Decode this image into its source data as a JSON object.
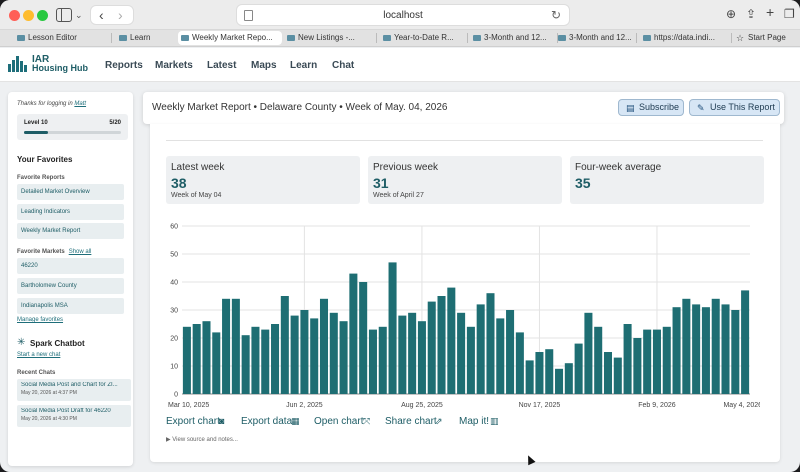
{
  "browser": {
    "url": "localhost",
    "tabs": [
      {
        "label": "Lesson Editor",
        "active": false
      },
      {
        "label": "Learn",
        "active": false
      },
      {
        "label": "Weekly Market Repo...",
        "active": true
      },
      {
        "label": "New Listings -...",
        "active": false
      },
      {
        "label": "Year-to-Date R...",
        "active": false
      },
      {
        "label": "3-Month and 12...",
        "active": false
      },
      {
        "label": "3-Month and 12...",
        "active": false
      },
      {
        "label": "https://data.indi...",
        "active": false
      },
      {
        "label": "Start Page",
        "active": false
      }
    ]
  },
  "app": {
    "logo_line1": "IAR",
    "logo_line2": "Housing Hub",
    "nav": [
      "Reports",
      "Markets",
      "Latest",
      "Maps",
      "Learn",
      "Chat"
    ]
  },
  "sidebar": {
    "thanks": "Thanks for logging in",
    "user": "Matt",
    "level_label": "Level 10",
    "level_progress": "5/20",
    "level_fraction": 0.25,
    "favorites_title": "Your Favorites",
    "favorite_reports_title": "Favorite Reports",
    "favorite_reports": [
      "Detailed Market Overview",
      "Leading Indicators",
      "Weekly Market Report"
    ],
    "favorite_markets_title": "Favorite Markets",
    "show_all": "Show all",
    "favorite_markets": [
      "46220",
      "Bartholomew County",
      "Indianapolis MSA"
    ],
    "manage_favorites": "Manage favorites",
    "chatbot_title": "Spark Chatbot",
    "new_chat": "Start a new chat",
    "recent_chats_title": "Recent Chats",
    "recent_chats": [
      {
        "title": "Social Media Post and Chart for ZI...",
        "date": "May 20, 2026 at 4:37 PM"
      },
      {
        "title": "Social Media Post Draft for 46220",
        "date": "May 20, 2026 at 4:30 PM"
      }
    ]
  },
  "report": {
    "title": "Weekly Market Report • Delaware County • Week of May. 04, 2026",
    "subscribe_label": "Subscribe",
    "use_label": "Use This Report",
    "stats": [
      {
        "label": "Latest week",
        "value": "38",
        "sub": "Week of May 04"
      },
      {
        "label": "Previous week",
        "value": "31",
        "sub": "Week of April 27"
      },
      {
        "label": "Four-week average",
        "value": "35",
        "sub": ""
      }
    ],
    "actions": [
      "Export chart",
      "Export data",
      "Open chart",
      "Share chart",
      "Map it!"
    ],
    "source_note": "▶ View source and notes..."
  },
  "chart_data": {
    "type": "bar",
    "title": "",
    "xlabel": "",
    "ylabel": "",
    "ylim": [
      0,
      60
    ],
    "yticks": [
      0,
      10,
      20,
      30,
      40,
      50,
      60
    ],
    "grid": true,
    "xtick_labels": [
      "Mar 10, 2025",
      "Jun 2, 2025",
      "Aug 25, 2025",
      "Nov 17, 2025",
      "Feb 9, 2026",
      "May 4, 2026"
    ],
    "xtick_index": [
      0,
      12,
      24,
      36,
      48,
      60
    ],
    "bar_color": "#1e6e73",
    "values": [
      24,
      25,
      26,
      22,
      34,
      34,
      21,
      24,
      23,
      25,
      35,
      28,
      30,
      27,
      34,
      29,
      26,
      43,
      40,
      23,
      24,
      47,
      28,
      29,
      26,
      33,
      35,
      38,
      29,
      24,
      32,
      36,
      27,
      30,
      22,
      12,
      15,
      16,
      9,
      11,
      18,
      29,
      24,
      15,
      13,
      25,
      20,
      23,
      23,
      24,
      31,
      34,
      32,
      31,
      34,
      32,
      30,
      37
    ]
  }
}
